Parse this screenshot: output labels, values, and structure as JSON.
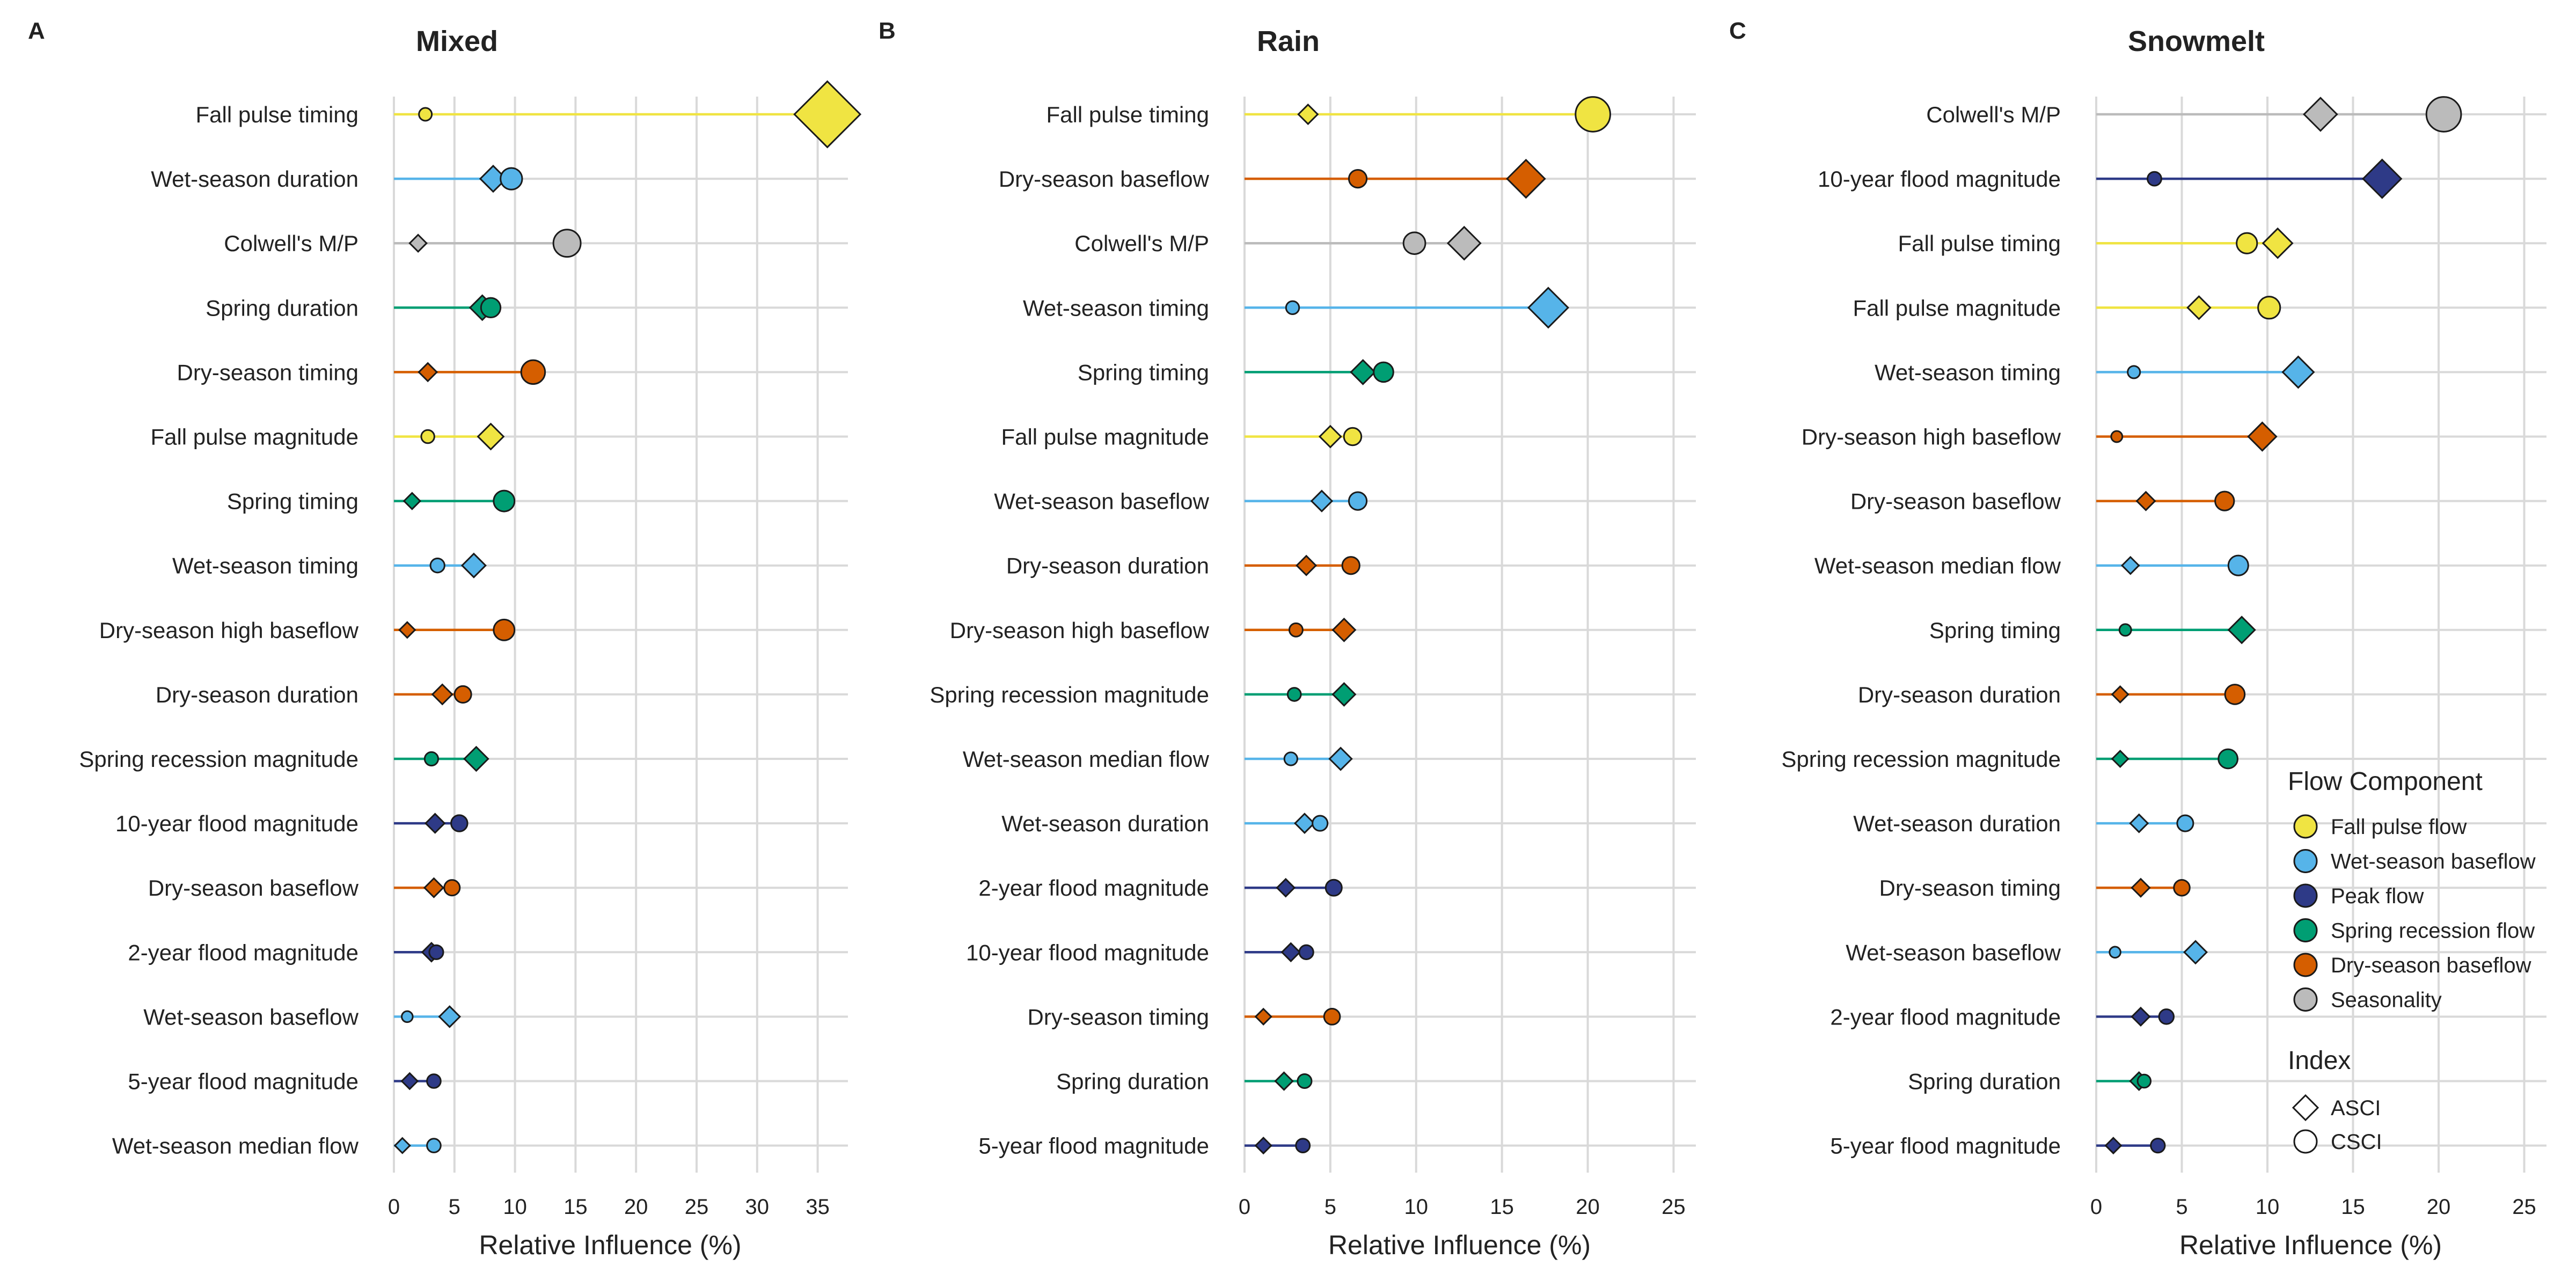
{
  "xlabel": "Relative Influence (%)",
  "colors": {
    "Fall pulse flow": "#F0E442",
    "Wet-season baseflow": "#56B4E9",
    "Peak flow": "#2E3A87",
    "Spring recession flow": "#009E73",
    "Dry-season baseflow": "#D55E00",
    "Seasonality": "#BBBBBB"
  },
  "legend": {
    "title": "Flow Component",
    "items": [
      "Fall pulse flow",
      "Wet-season baseflow",
      "Peak flow",
      "Spring recession flow",
      "Dry-season baseflow",
      "Seasonality"
    ],
    "index_title": "Index",
    "index_items": [
      "ASCI",
      "CSCI"
    ]
  },
  "chart_data": [
    {
      "type": "dot",
      "letter": "A",
      "title": "Mixed",
      "xlim": [
        0,
        37.5
      ],
      "xticks": [
        0,
        5,
        10,
        15,
        20,
        25,
        30,
        35
      ],
      "rows": [
        {
          "label": "Fall pulse timing",
          "component": "Fall pulse flow",
          "asci": 35.8,
          "csci": 2.6
        },
        {
          "label": "Wet-season duration",
          "component": "Wet-season baseflow",
          "asci": 8.2,
          "csci": 9.7
        },
        {
          "label": "Colwell's M/P",
          "component": "Seasonality",
          "asci": 2.0,
          "csci": 14.3
        },
        {
          "label": "Spring duration",
          "component": "Spring recession flow",
          "asci": 7.3,
          "csci": 8.0
        },
        {
          "label": "Dry-season timing",
          "component": "Dry-season baseflow",
          "asci": 2.8,
          "csci": 11.5
        },
        {
          "label": "Fall pulse magnitude",
          "component": "Fall pulse flow",
          "asci": 8.0,
          "csci": 2.8
        },
        {
          "label": "Spring timing",
          "component": "Spring recession flow",
          "asci": 1.5,
          "csci": 9.1
        },
        {
          "label": "Wet-season timing",
          "component": "Wet-season baseflow",
          "asci": 6.6,
          "csci": 3.6
        },
        {
          "label": "Dry-season high baseflow",
          "component": "Dry-season baseflow",
          "asci": 1.1,
          "csci": 9.1
        },
        {
          "label": "Dry-season duration",
          "component": "Dry-season baseflow",
          "asci": 4.0,
          "csci": 5.7
        },
        {
          "label": "Spring recession magnitude",
          "component": "Spring recession flow",
          "asci": 6.8,
          "csci": 3.1
        },
        {
          "label": "10-year flood magnitude",
          "component": "Peak flow",
          "asci": 3.4,
          "csci": 5.4
        },
        {
          "label": "Dry-season baseflow",
          "component": "Dry-season baseflow",
          "asci": 3.3,
          "csci": 4.8
        },
        {
          "label": "2-year flood magnitude",
          "component": "Peak flow",
          "asci": 3.1,
          "csci": 3.5
        },
        {
          "label": "Wet-season baseflow",
          "component": "Wet-season baseflow",
          "asci": 4.6,
          "csci": 1.1
        },
        {
          "label": "5-year flood magnitude",
          "component": "Peak flow",
          "asci": 1.3,
          "csci": 3.3
        },
        {
          "label": "Wet-season median flow",
          "component": "Wet-season baseflow",
          "asci": 0.7,
          "csci": 3.3
        }
      ]
    },
    {
      "type": "dot",
      "letter": "B",
      "title": "Rain",
      "xlim": [
        0,
        26.3
      ],
      "xticks": [
        0,
        5,
        10,
        15,
        20,
        25
      ],
      "rows": [
        {
          "label": "Fall pulse timing",
          "component": "Fall pulse flow",
          "asci": 3.7,
          "csci": 20.3
        },
        {
          "label": "Dry-season baseflow",
          "component": "Dry-season baseflow",
          "asci": 16.4,
          "csci": 6.6
        },
        {
          "label": "Colwell's M/P",
          "component": "Seasonality",
          "asci": 12.8,
          "csci": 9.9
        },
        {
          "label": "Wet-season timing",
          "component": "Wet-season baseflow",
          "asci": 17.7,
          "csci": 2.8
        },
        {
          "label": "Spring timing",
          "component": "Spring recession flow",
          "asci": 6.9,
          "csci": 8.1
        },
        {
          "label": "Fall pulse magnitude",
          "component": "Fall pulse flow",
          "asci": 5.0,
          "csci": 6.3
        },
        {
          "label": "Wet-season baseflow",
          "component": "Wet-season baseflow",
          "asci": 4.5,
          "csci": 6.6
        },
        {
          "label": "Dry-season duration",
          "component": "Dry-season baseflow",
          "asci": 3.6,
          "csci": 6.2
        },
        {
          "label": "Dry-season high baseflow",
          "component": "Dry-season baseflow",
          "asci": 5.8,
          "csci": 3.0
        },
        {
          "label": "Spring recession magnitude",
          "component": "Spring recession flow",
          "asci": 5.8,
          "csci": 2.9
        },
        {
          "label": "Wet-season median flow",
          "component": "Wet-season baseflow",
          "asci": 5.6,
          "csci": 2.7
        },
        {
          "label": "Wet-season duration",
          "component": "Wet-season baseflow",
          "asci": 3.5,
          "csci": 4.4
        },
        {
          "label": "2-year flood magnitude",
          "component": "Peak flow",
          "asci": 2.4,
          "csci": 5.2
        },
        {
          "label": "10-year flood magnitude",
          "component": "Peak flow",
          "asci": 2.7,
          "csci": 3.6
        },
        {
          "label": "Dry-season timing",
          "component": "Dry-season baseflow",
          "asci": 1.1,
          "csci": 5.1
        },
        {
          "label": "Spring duration",
          "component": "Spring recession flow",
          "asci": 2.3,
          "csci": 3.5
        },
        {
          "label": "5-year flood magnitude",
          "component": "Peak flow",
          "asci": 1.1,
          "csci": 3.4
        }
      ]
    },
    {
      "type": "dot",
      "letter": "C",
      "title": "Snowmelt",
      "xlim": [
        0,
        26.3
      ],
      "xticks": [
        0,
        5,
        10,
        15,
        20,
        25
      ],
      "rows": [
        {
          "label": "Colwell's M/P",
          "component": "Seasonality",
          "asci": 13.1,
          "csci": 20.3
        },
        {
          "label": "10-year flood magnitude",
          "component": "Peak flow",
          "asci": 16.7,
          "csci": 3.4
        },
        {
          "label": "Fall pulse timing",
          "component": "Fall pulse flow",
          "asci": 10.6,
          "csci": 8.8
        },
        {
          "label": "Fall pulse magnitude",
          "component": "Fall pulse flow",
          "asci": 6.0,
          "csci": 10.1
        },
        {
          "label": "Wet-season timing",
          "component": "Wet-season baseflow",
          "asci": 11.8,
          "csci": 2.2
        },
        {
          "label": "Dry-season high baseflow",
          "component": "Dry-season baseflow",
          "asci": 9.7,
          "csci": 1.2
        },
        {
          "label": "Dry-season baseflow",
          "component": "Dry-season baseflow",
          "asci": 2.9,
          "csci": 7.5
        },
        {
          "label": "Wet-season median flow",
          "component": "Wet-season baseflow",
          "asci": 2.0,
          "csci": 8.3
        },
        {
          "label": "Spring timing",
          "component": "Spring recession flow",
          "asci": 8.5,
          "csci": 1.7
        },
        {
          "label": "Dry-season duration",
          "component": "Dry-season baseflow",
          "asci": 1.4,
          "csci": 8.1
        },
        {
          "label": "Spring recession magnitude",
          "component": "Spring recession flow",
          "asci": 1.4,
          "csci": 7.7
        },
        {
          "label": "Wet-season duration",
          "component": "Wet-season baseflow",
          "asci": 2.5,
          "csci": 5.2
        },
        {
          "label": "Dry-season timing",
          "component": "Dry-season baseflow",
          "asci": 2.6,
          "csci": 5.0
        },
        {
          "label": "Wet-season baseflow",
          "component": "Wet-season baseflow",
          "asci": 5.8,
          "csci": 1.1
        },
        {
          "label": "2-year flood magnitude",
          "component": "Peak flow",
          "asci": 2.6,
          "csci": 4.1
        },
        {
          "label": "Spring duration",
          "component": "Spring recession flow",
          "asci": 2.5,
          "csci": 2.8
        },
        {
          "label": "5-year flood magnitude",
          "component": "Peak flow",
          "asci": 1.0,
          "csci": 3.6
        }
      ]
    }
  ]
}
